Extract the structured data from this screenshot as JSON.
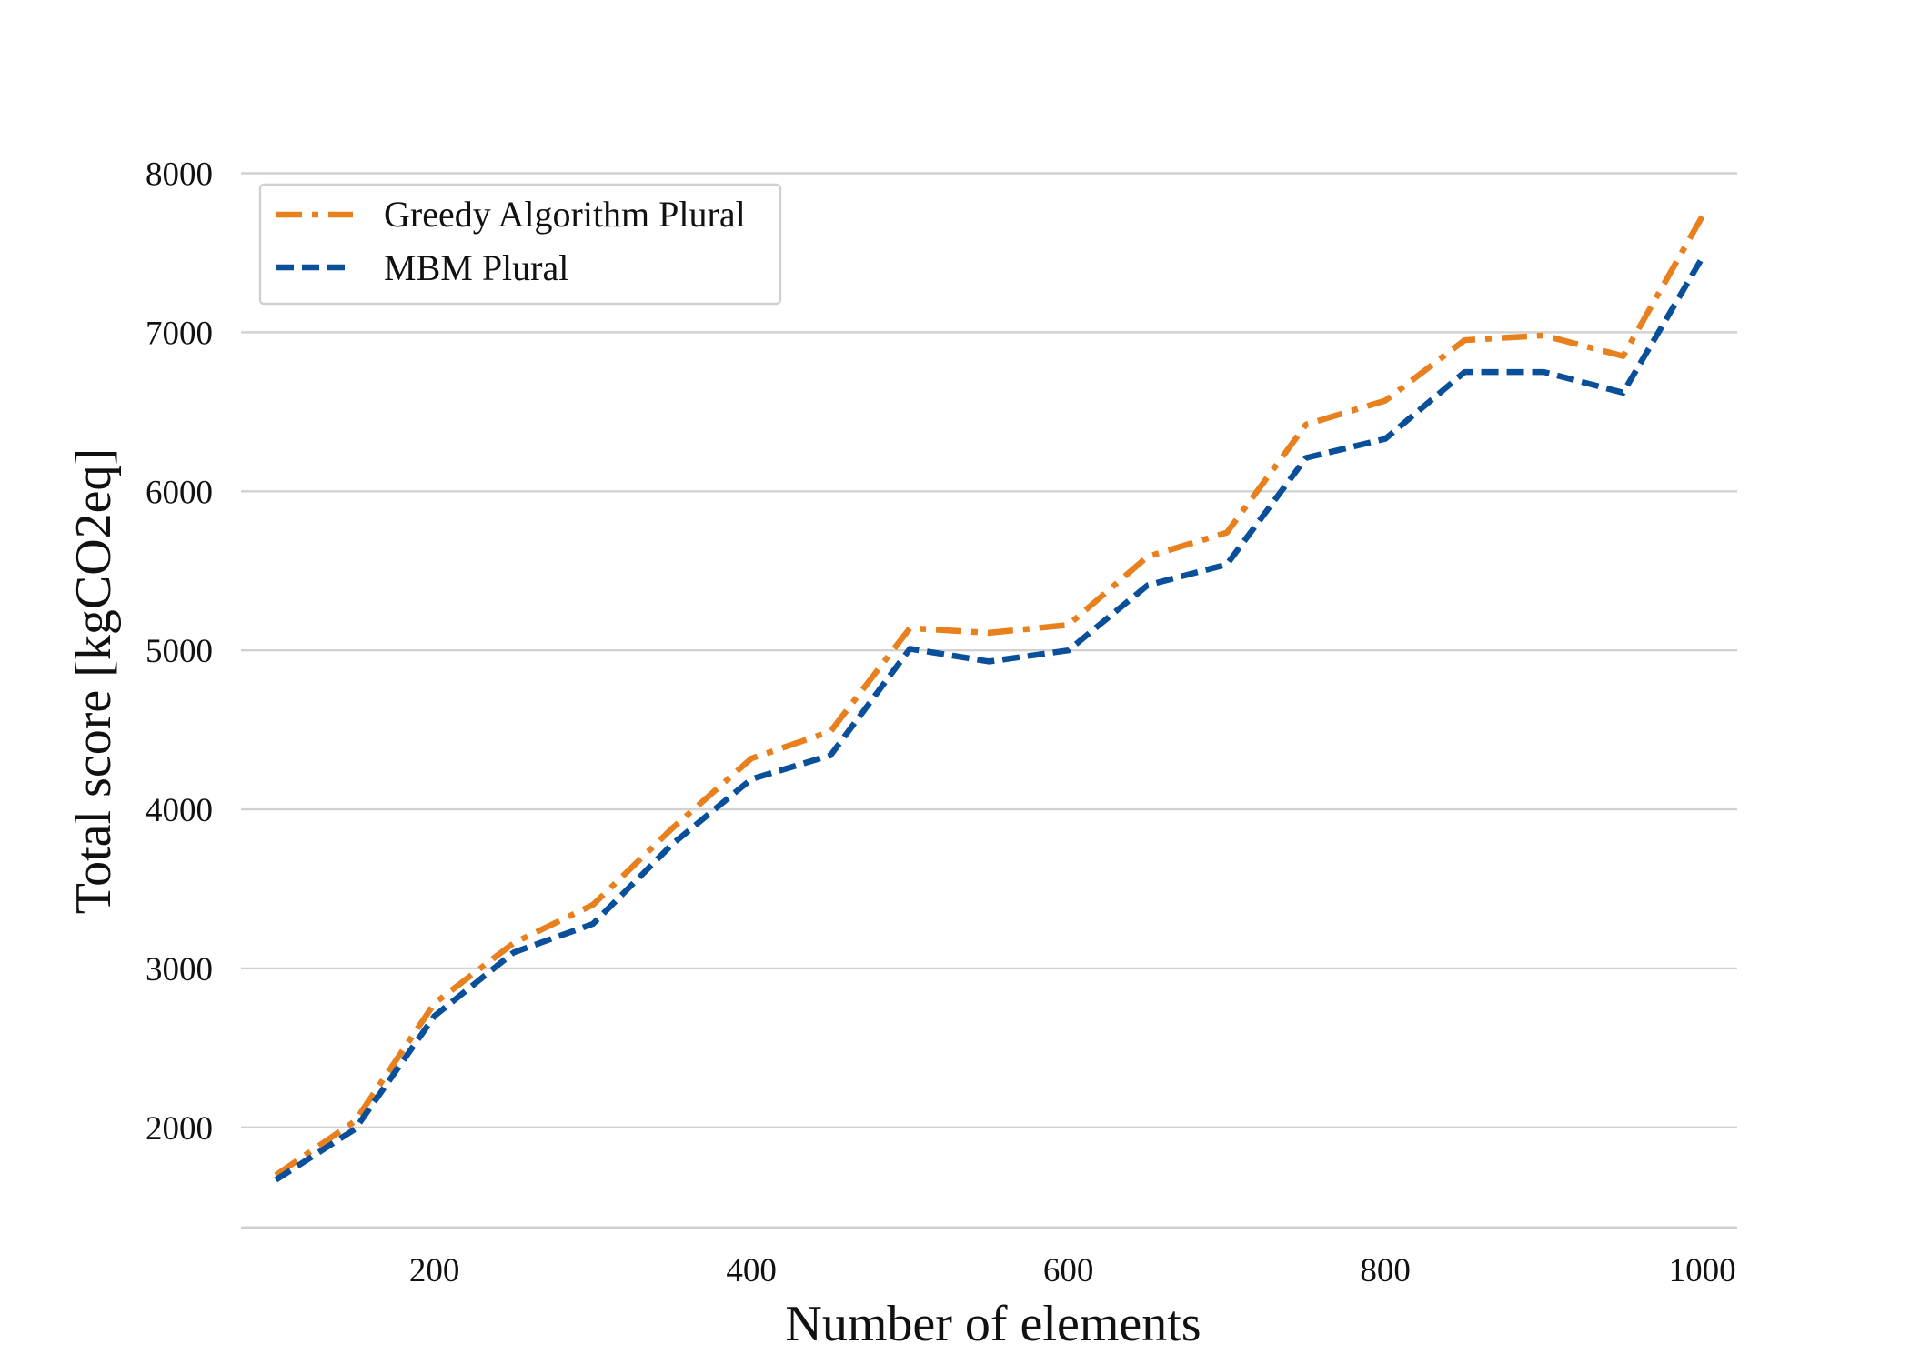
{
  "chart_data": {
    "type": "line",
    "title": "",
    "xlabel": "Number of elements",
    "ylabel": "Total score [kgCO2eq]",
    "xlim": [
      78,
      1022
    ],
    "ylim": [
      1370,
      8060
    ],
    "xticks": [
      200,
      400,
      600,
      800,
      1000
    ],
    "yticks": [
      2000,
      3000,
      4000,
      5000,
      6000,
      7000,
      8000
    ],
    "grid": "horizontal",
    "legend_position": "top-left",
    "x": [
      100,
      150,
      200,
      250,
      300,
      350,
      400,
      450,
      500,
      550,
      600,
      650,
      700,
      750,
      800,
      850,
      900,
      950,
      1000
    ],
    "series": [
      {
        "name": "Greedy Algorithm Plural",
        "color": "#e8801e",
        "dash": "dash-dot",
        "values": [
          1700,
          2040,
          2780,
          3160,
          3400,
          3880,
          4320,
          4490,
          5140,
          5110,
          5160,
          5590,
          5740,
          6420,
          6570,
          6950,
          6980,
          6850,
          7730
        ]
      },
      {
        "name": "MBM Plural",
        "color": "#0a4f9a",
        "dash": "dashed",
        "values": [
          1670,
          1990,
          2700,
          3100,
          3280,
          3780,
          4190,
          4340,
          5010,
          4930,
          5000,
          5410,
          5540,
          6210,
          6330,
          6750,
          6750,
          6620,
          7470
        ]
      }
    ]
  }
}
